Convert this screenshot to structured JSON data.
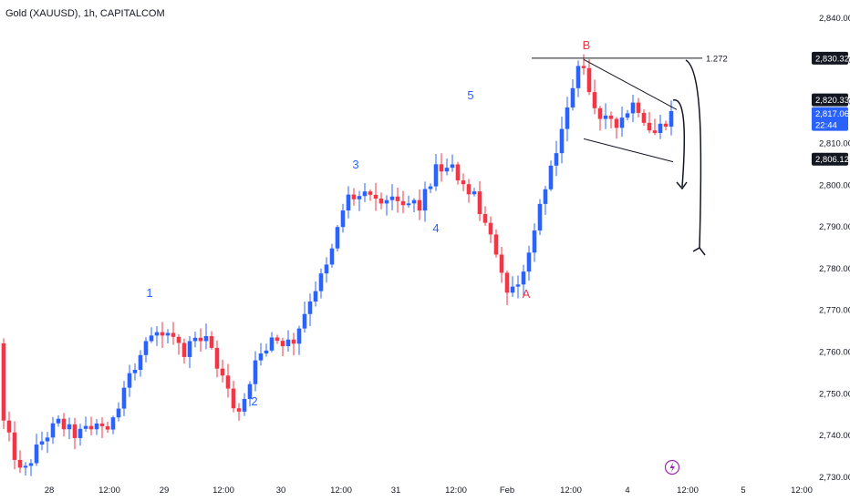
{
  "header": {
    "title": "Gold (XAUUSD), 1h, CAPITALCOM"
  },
  "colors": {
    "up": "#2962ff",
    "down": "#f23645",
    "text": "#131722",
    "badge": "#131722",
    "accent": "#2962ff"
  },
  "icons": {
    "lightning": "lightning-bolt-icon"
  },
  "chart_data": {
    "type": "candlestick",
    "title": "Gold (XAUUSD), 1h, CAPITALCOM",
    "y_axis": {
      "position": "right",
      "range": [
        2726,
        2846
      ],
      "ticks": [
        "2,840.00",
        "2,830.00",
        "2,820.00",
        "2,810.00",
        "2,800.00",
        "2,790.00",
        "2,780.00",
        "2,770.00",
        "2,760.00",
        "2,750.00",
        "2,740.00",
        "2,730.00"
      ]
    },
    "x_axis": {
      "ticks": [
        "28",
        "12:00",
        "29",
        "12:00",
        "30",
        "12:00",
        "31",
        "12:00",
        "Feb",
        "12:00",
        "4",
        "12:00",
        "5",
        "12:00"
      ]
    },
    "grid": false,
    "price_badges": [
      {
        "label": "2,830.32",
        "value": 2830.32,
        "style": "dark"
      },
      {
        "label": "2,820.33",
        "value": 2820.33,
        "style": "dark"
      },
      {
        "label": "2,817.06",
        "sublabel": "22:44",
        "value": 2817.06,
        "style": "accent"
      },
      {
        "label": "2,806.12",
        "value": 2806.12,
        "style": "dark"
      }
    ],
    "fib_level": {
      "label": "1.272",
      "value": 2830.32
    },
    "wave_labels": [
      {
        "text": "1",
        "color": "blue"
      },
      {
        "text": "2",
        "color": "blue"
      },
      {
        "text": "3",
        "color": "blue"
      },
      {
        "text": "4",
        "color": "blue"
      },
      {
        "text": "5",
        "color": "blue"
      },
      {
        "text": "A",
        "color": "red"
      },
      {
        "text": "B",
        "color": "red"
      }
    ],
    "anchors": [
      [
        2762,
        2743
      ],
      [
        2748,
        2730
      ],
      [
        2740,
        2738
      ],
      [
        2742,
        2743
      ],
      [
        2745,
        2740
      ],
      [
        2745,
        2742
      ],
      [
        2749,
        2743
      ],
      [
        2760,
        2754
      ],
      [
        2766,
        2762
      ],
      [
        2764,
        2765
      ],
      [
        2766,
        2760
      ],
      [
        2758,
        2765
      ],
      [
        2750,
        2755
      ],
      [
        2745,
        2745
      ],
      [
        2760,
        2757
      ],
      [
        2762,
        2763
      ],
      [
        2761,
        2762
      ],
      [
        2775,
        2773
      ],
      [
        2785,
        2781
      ],
      [
        2798,
        2797
      ],
      [
        2793,
        2797
      ],
      [
        2794,
        2797
      ],
      [
        2797,
        2796
      ],
      [
        2792,
        2794
      ],
      [
        2794,
        2804
      ],
      [
        2812,
        2803
      ],
      [
        2804,
        2798
      ],
      [
        2796,
        2787
      ],
      [
        2776,
        2773
      ],
      [
        2776,
        2781
      ],
      [
        2790,
        2800
      ],
      [
        2811,
        2814
      ],
      [
        2826,
        2830
      ],
      [
        2818,
        2816
      ],
      [
        2818,
        2815
      ],
      [
        2818,
        2820
      ],
      [
        2815,
        2812
      ],
      [
        2813,
        2817
      ]
    ]
  }
}
